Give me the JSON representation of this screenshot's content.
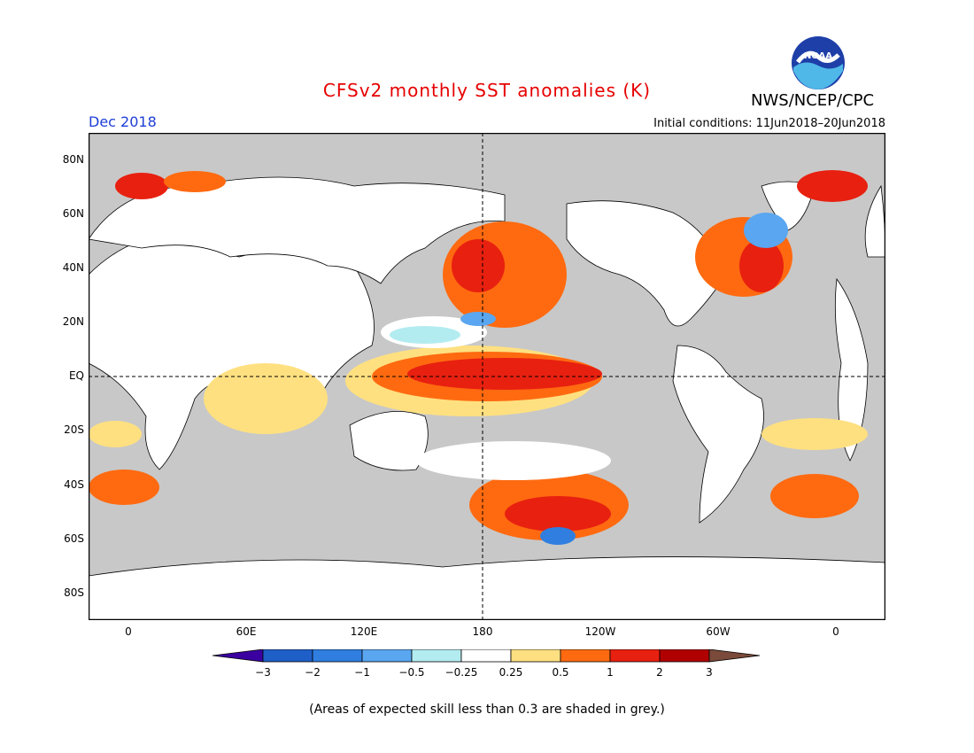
{
  "title": "CFSv2 monthly SST anomalies (K)",
  "period": "Dec 2018",
  "initial_conditions": "Initial conditions: 11Jun2018–20Jun2018",
  "agency": "NWS/NCEP/CPC",
  "logo_text": "NOAA",
  "lat_labels": [
    "80N",
    "60N",
    "40N",
    "20N",
    "EQ",
    "20S",
    "40S",
    "60S",
    "80S"
  ],
  "lon_labels": [
    "0",
    "60E",
    "120E",
    "180",
    "120W",
    "60W",
    "0"
  ],
  "colorbar": {
    "labels": [
      "−3",
      "−2",
      "−1",
      "−0.5",
      "−0.25",
      "0.25",
      "0.5",
      "1",
      "2",
      "3"
    ],
    "colors": [
      "#3a00a0",
      "#1f5fc8",
      "#2f7ee0",
      "#5aa6f0",
      "#b3ecf0",
      "#ffffff",
      "#ffe080",
      "#ff6a10",
      "#e82010",
      "#b00000",
      "#7a4a3a"
    ]
  },
  "map_colors": {
    "ocean_grey": "#c8c8c8",
    "coast": "#000000"
  },
  "note": "(Areas of expected skill less than 0.3 are shaded in grey.)"
}
